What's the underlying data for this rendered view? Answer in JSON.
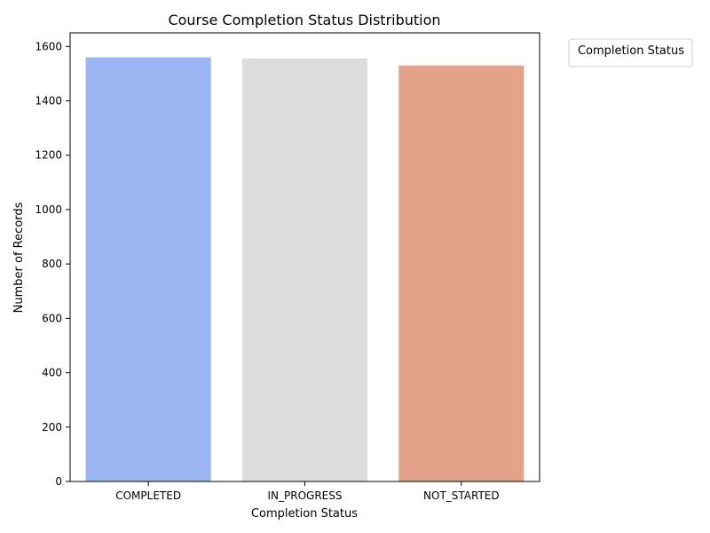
{
  "chart_data": {
    "type": "bar",
    "title": "Course Completion Status Distribution",
    "xlabel": "Completion Status",
    "ylabel": "Number of Records",
    "categories": [
      "COMPLETED",
      "IN_PROGRESS",
      "NOT_STARTED"
    ],
    "values": [
      1560,
      1556,
      1530
    ],
    "colors": [
      "#9bb6f2",
      "#dcdcdc",
      "#e4a28b"
    ],
    "ylim": [
      0,
      1650
    ],
    "yticks": [
      0,
      200,
      400,
      600,
      800,
      1000,
      1200,
      1400,
      1600
    ],
    "ytick_labels": [
      "0",
      "200",
      "400",
      "600",
      "800",
      "1000",
      "1200",
      "1400",
      "1600"
    ],
    "grid": false,
    "legend": {
      "title": "Completion Status",
      "placement": "outside-top-right",
      "entries": []
    }
  }
}
